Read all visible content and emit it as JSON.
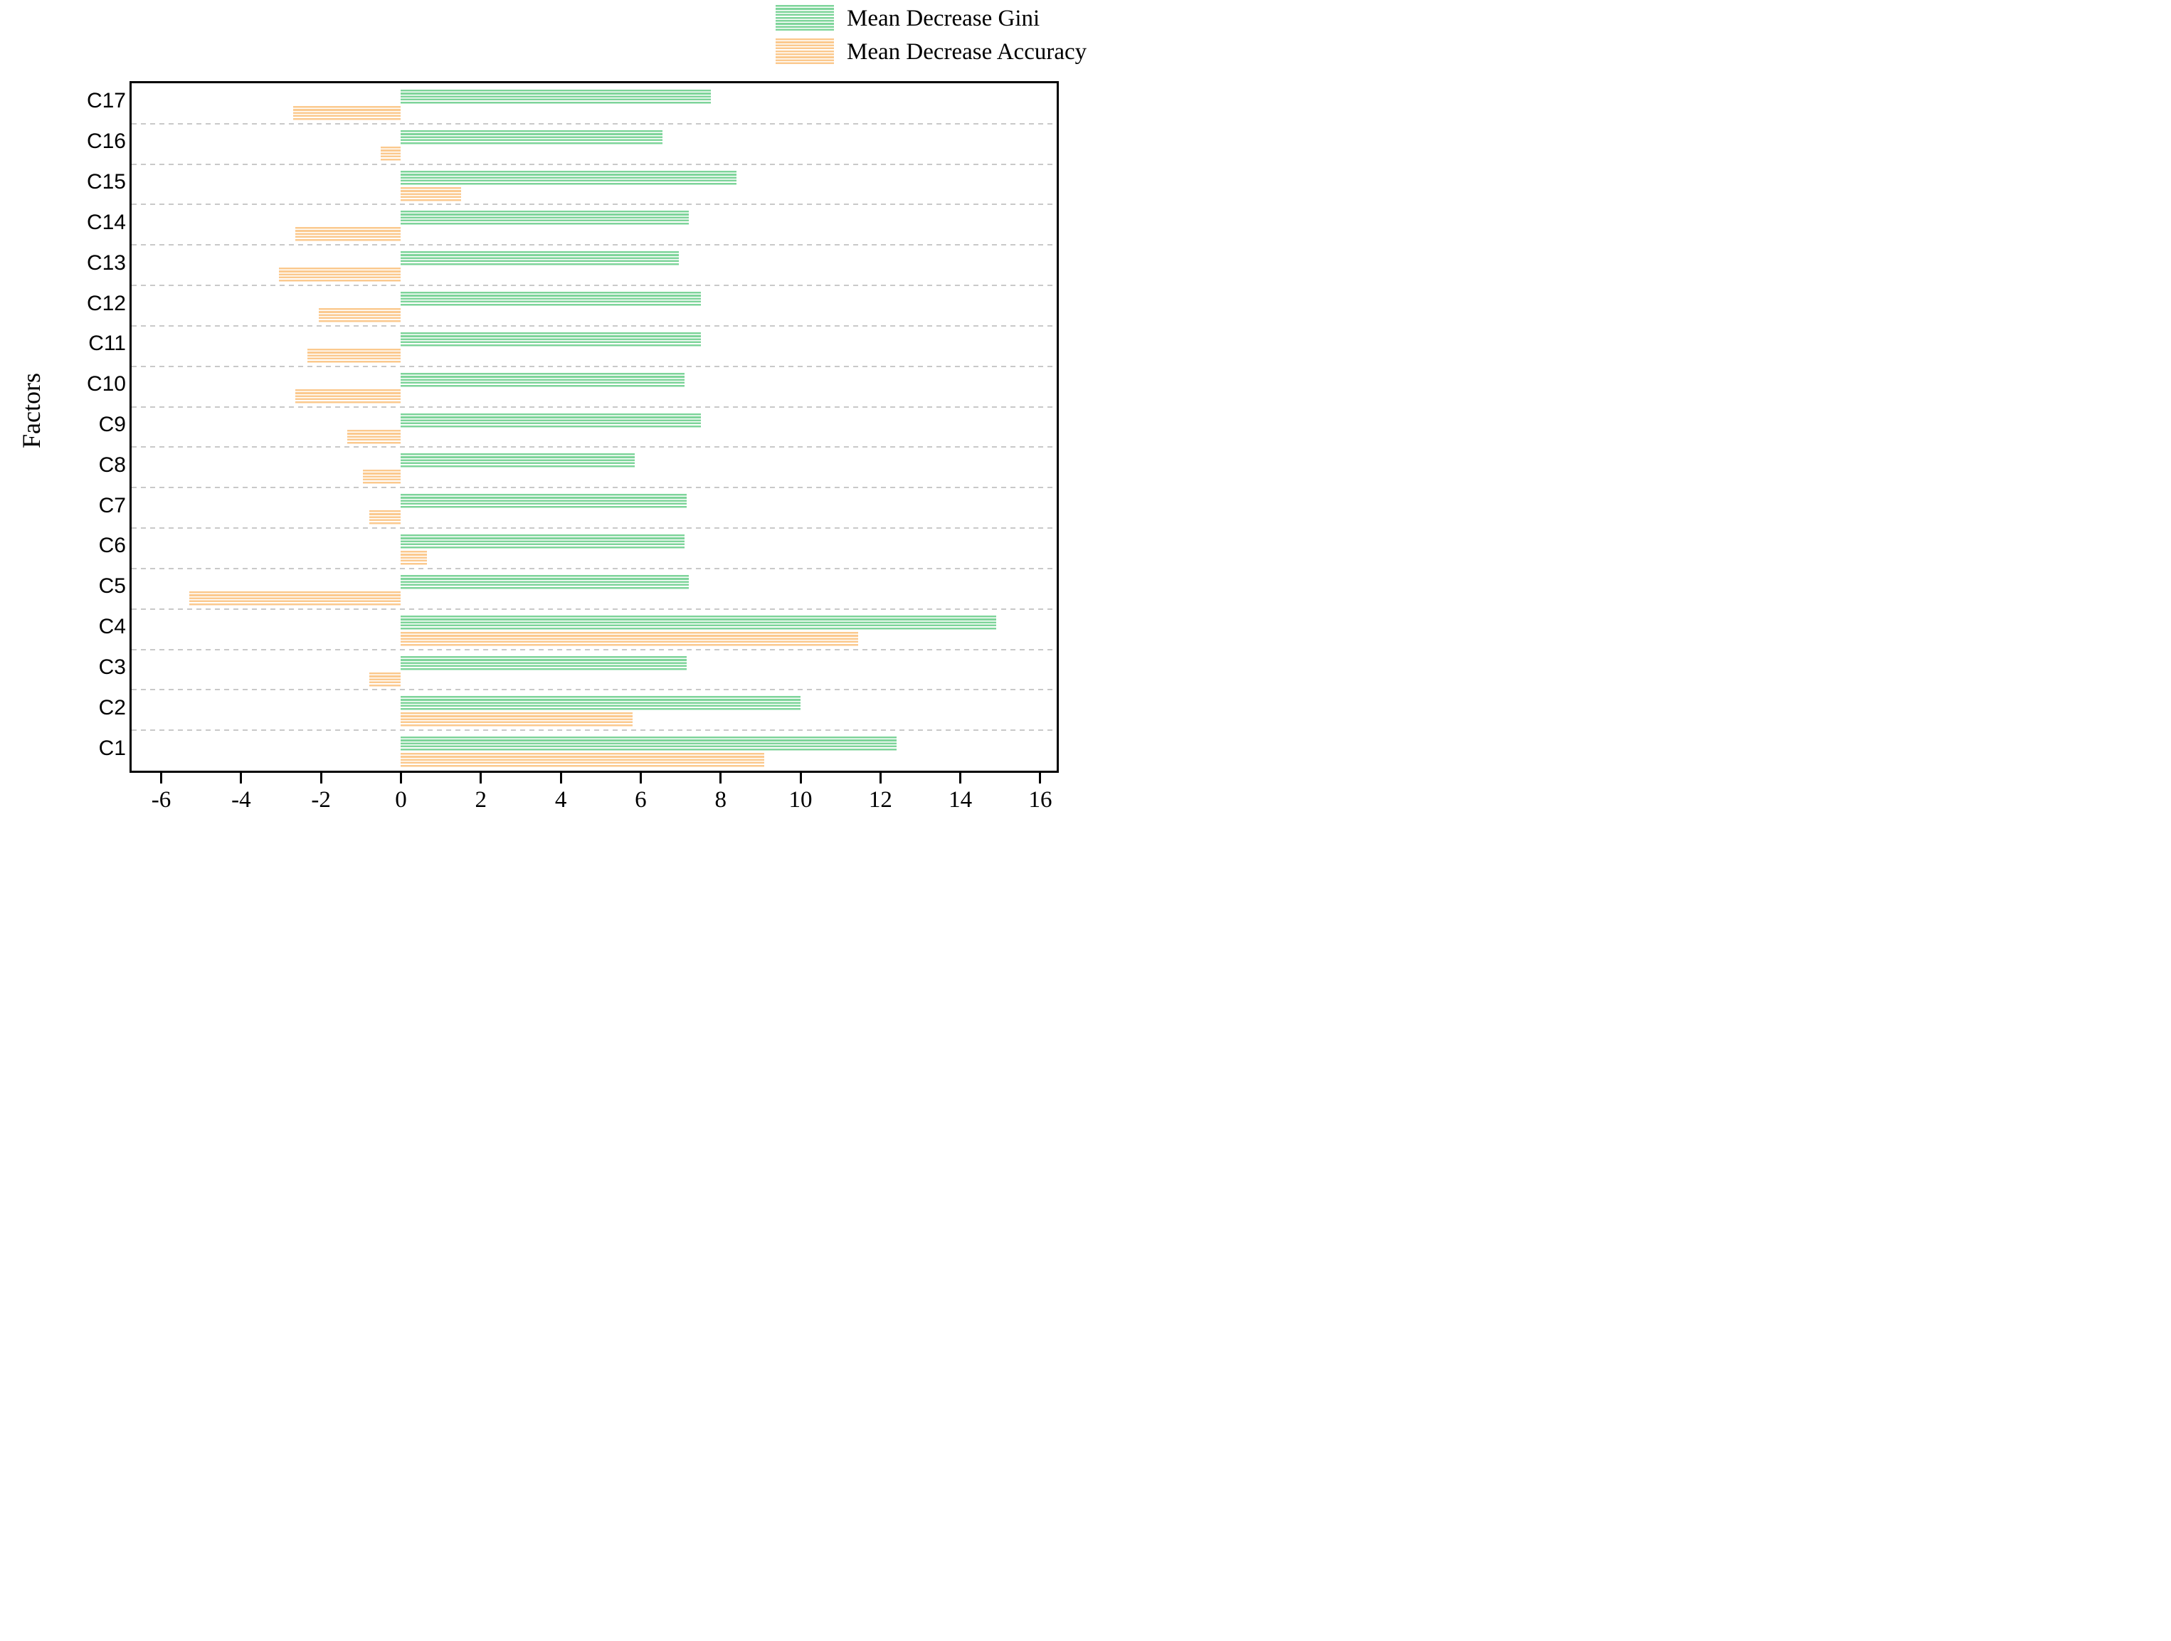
{
  "colors": {
    "gini_green": "#7ed49a",
    "accuracy_orange": "#fbc98e",
    "separator_gray": "#c9c9c9",
    "axis_black": "#000000"
  },
  "legend": {
    "items": [
      {
        "label": "Mean Decrease Gini",
        "color": "#7ed49a"
      },
      {
        "label": "Mean Decrease Accuracy",
        "color": "#fbc98e"
      }
    ],
    "position": "top-right"
  },
  "y_axis_title": "Factors",
  "chart_data": {
    "type": "bar",
    "orientation": "horizontal",
    "title": "",
    "xlabel": "",
    "ylabel": "Factors",
    "y_order": "top-to-bottom",
    "categories": [
      "C17",
      "C16",
      "C15",
      "C14",
      "C13",
      "C12",
      "C11",
      "C10",
      "C9",
      "C8",
      "C7",
      "C6",
      "C5",
      "C4",
      "C3",
      "C2",
      "C1"
    ],
    "series": [
      {
        "name": "Mean Decrease Gini",
        "color": "#7ed49a",
        "hatch": "horizontal-stripes",
        "values": [
          7.75,
          6.55,
          8.4,
          7.2,
          6.95,
          7.5,
          7.5,
          7.1,
          7.5,
          5.85,
          7.15,
          7.1,
          7.2,
          14.9,
          7.15,
          10.0,
          12.4
        ]
      },
      {
        "name": "Mean Decrease Accuracy",
        "color": "#fbc98e",
        "hatch": "horizontal-stripes",
        "values": [
          -2.7,
          -0.5,
          1.5,
          -2.65,
          -3.05,
          -2.05,
          -2.35,
          -2.65,
          -1.35,
          -0.95,
          -0.8,
          0.65,
          -5.3,
          11.45,
          -0.8,
          5.8,
          9.1
        ]
      }
    ],
    "x_ticks": [
      -6,
      -4,
      -2,
      0,
      2,
      4,
      6,
      8,
      10,
      12,
      14,
      16
    ],
    "xlim": [
      -6.74,
      16.41
    ],
    "grid": "dashed horizontal separators between category rows",
    "legend_position": "upper right outside plot"
  }
}
